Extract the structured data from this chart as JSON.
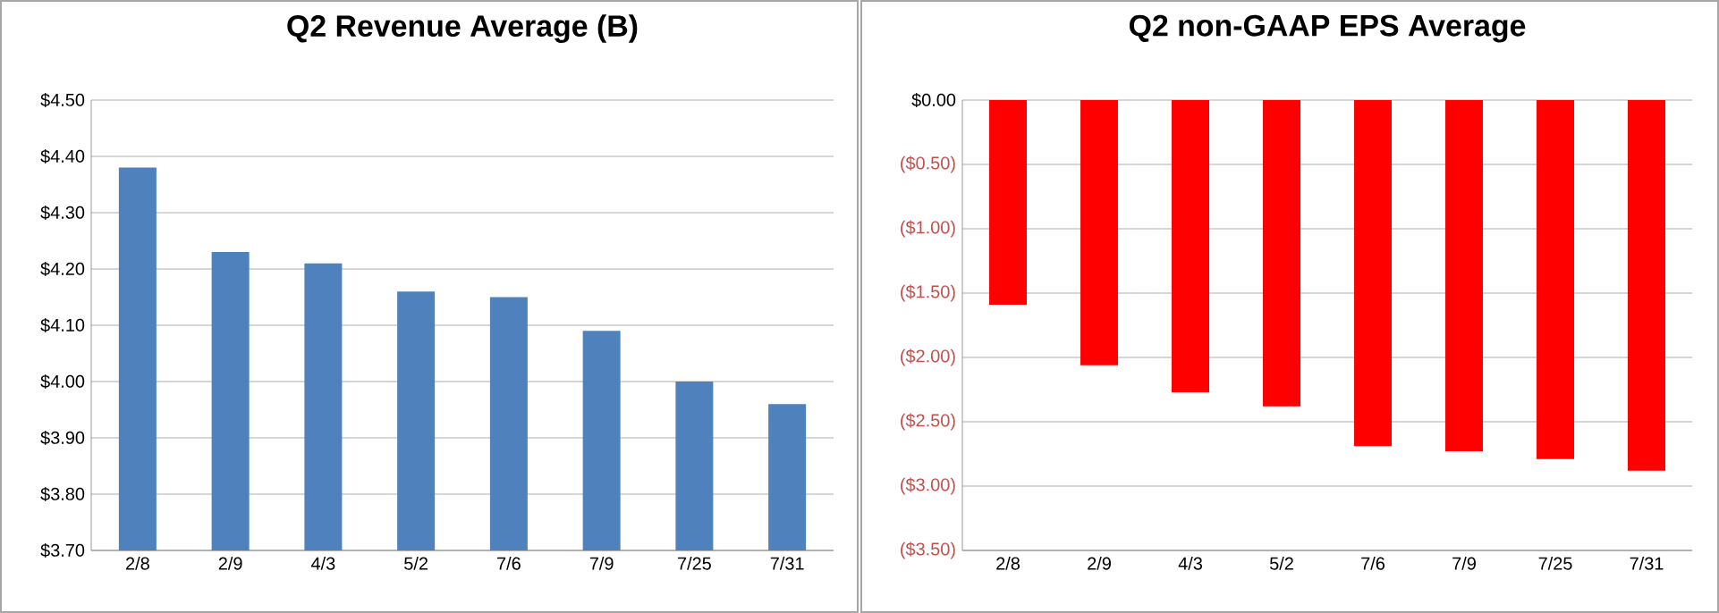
{
  "chart_data": [
    {
      "type": "bar",
      "title": "Q2 Revenue Average (B)",
      "categories": [
        "2/8",
        "2/9",
        "4/3",
        "5/2",
        "7/6",
        "7/9",
        "7/25",
        "7/31"
      ],
      "color": "#4f81bd",
      "values": [
        4.38,
        4.23,
        4.21,
        4.16,
        4.15,
        4.09,
        4.0,
        3.96
      ],
      "ylim": [
        3.7,
        4.5
      ],
      "yticks": [
        {
          "value": 3.7,
          "label": "$3.70"
        },
        {
          "value": 3.8,
          "label": "$3.80"
        },
        {
          "value": 3.9,
          "label": "$3.90"
        },
        {
          "value": 4.0,
          "label": "$4.00"
        },
        {
          "value": 4.1,
          "label": "$4.10"
        },
        {
          "value": 4.2,
          "label": "$4.20"
        },
        {
          "value": 4.3,
          "label": "$4.30"
        },
        {
          "value": 4.4,
          "label": "$4.40"
        },
        {
          "value": 4.5,
          "label": "$4.50"
        }
      ],
      "grid": "y"
    },
    {
      "type": "bar",
      "title": "Q2 non-GAAP EPS Average",
      "categories": [
        "2/8",
        "2/9",
        "4/3",
        "5/2",
        "7/6",
        "7/9",
        "7/25",
        "7/31"
      ],
      "color": "#ff0000",
      "values": [
        -1.59,
        -2.06,
        -2.27,
        -2.38,
        -2.69,
        -2.73,
        -2.79,
        -2.88
      ],
      "ylim": [
        -3.5,
        0
      ],
      "yticks": [
        {
          "value": -3.5,
          "label": "($3.50)"
        },
        {
          "value": -3.0,
          "label": "($3.00)"
        },
        {
          "value": -2.5,
          "label": "($2.50)"
        },
        {
          "value": -2.0,
          "label": "($2.00)"
        },
        {
          "value": -1.5,
          "label": "($1.50)"
        },
        {
          "value": -1.0,
          "label": "($1.00)"
        },
        {
          "value": -0.5,
          "label": "($0.50)"
        },
        {
          "value": 0,
          "label": "$0.00"
        }
      ],
      "grid": "y"
    }
  ]
}
